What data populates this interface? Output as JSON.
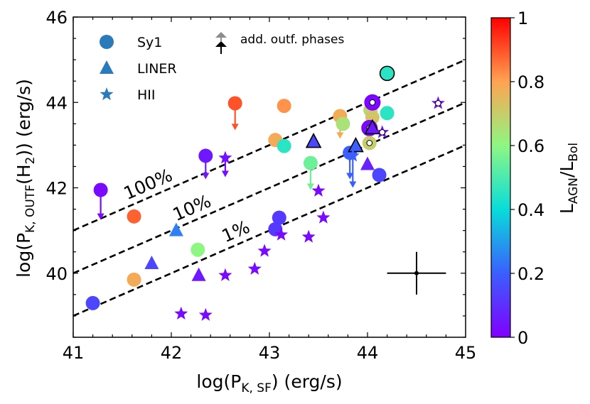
{
  "chart_data": {
    "type": "scatter",
    "xlabel": "log(P",
    "xlabel_sub": "K, SF",
    "xlabel_tail": ") (erg/s)",
    "ylabel": "log(P",
    "ylabel_sub": "K, OUTF",
    "ylabel_mid": "(H",
    "ylabel_sub2": "2",
    "ylabel_tail": ")) (erg/s)",
    "xlim": [
      41,
      45
    ],
    "ylim": [
      38.5,
      46
    ],
    "xticks": [
      "41",
      "42",
      "43",
      "44",
      "45"
    ],
    "yticks": [
      "40",
      "42",
      "44",
      "46"
    ],
    "colorbar": {
      "label": "L",
      "label_sub": "AGN",
      "label_mid": "/L",
      "label_sub2": "Bol",
      "range": [
        0,
        1
      ],
      "ticks": [
        "0",
        "0.2",
        "0.4",
        "0.6",
        "0.8",
        "1"
      ]
    },
    "legend": {
      "position": "top-left",
      "entries": [
        {
          "label": "Sy1",
          "marker": "circle"
        },
        {
          "label": "LINER",
          "marker": "triangle"
        },
        {
          "label": "HII",
          "marker": "star"
        }
      ],
      "arrow_entry": "add. outf. phases"
    },
    "reference_lines": [
      {
        "label": "100%",
        "offset": 0
      },
      {
        "label": "10%",
        "offset": -1
      },
      {
        "label": "1%",
        "offset": -2
      }
    ],
    "error_bar": {
      "x": 44.5,
      "y": 40.0,
      "xerr": 0.3,
      "yerr": 0.5
    },
    "points": [
      {
        "t": "c",
        "x": 41.2,
        "y": 39.3,
        "c": 0.15
      },
      {
        "t": "c",
        "x": 41.28,
        "y": 41.95,
        "c": 0.02,
        "arrow": 41.25
      },
      {
        "t": "c",
        "x": 41.62,
        "y": 41.33,
        "c": 0.88
      },
      {
        "t": "c",
        "x": 41.62,
        "y": 39.85,
        "c": 0.78
      },
      {
        "t": "c",
        "x": 42.27,
        "y": 40.55,
        "c": 0.6
      },
      {
        "t": "c",
        "x": 42.35,
        "y": 42.75,
        "c": 0.05,
        "arrow": 42.2
      },
      {
        "t": "c",
        "x": 42.65,
        "y": 43.98,
        "c": 0.9,
        "arrow": 43.35
      },
      {
        "t": "c",
        "x": 43.06,
        "y": 43.12,
        "c": 0.78
      },
      {
        "t": "c",
        "x": 43.06,
        "y": 41.03,
        "c": 0.12
      },
      {
        "t": "c",
        "x": 43.1,
        "y": 41.3,
        "c": 0.12
      },
      {
        "t": "c",
        "x": 43.15,
        "y": 42.98,
        "c": 0.45
      },
      {
        "t": "c",
        "x": 43.15,
        "y": 43.92,
        "c": 0.82
      },
      {
        "t": "c",
        "x": 43.42,
        "y": 42.58,
        "c": 0.55,
        "arrow": 41.95
      },
      {
        "t": "c",
        "x": 43.72,
        "y": 43.68,
        "c": 0.78,
        "arrow": 43.15
      },
      {
        "t": "c",
        "x": 43.75,
        "y": 43.5,
        "c": 0.65
      },
      {
        "t": "c",
        "x": 43.82,
        "y": 42.82,
        "c": 0.2,
        "arrow": 42.2
      },
      {
        "t": "c",
        "x": 44.03,
        "y": 43.82,
        "c": 0.68
      },
      {
        "t": "c",
        "x": 44.05,
        "y": 43.65,
        "c": 0.72
      },
      {
        "t": "c",
        "x": 44.02,
        "y": 43.4,
        "c": 0.02,
        "edge": "purple",
        "inner": true
      },
      {
        "t": "c",
        "x": 44.05,
        "y": 44.0,
        "c": 0.02,
        "edge": "purple",
        "inner": true
      },
      {
        "t": "c",
        "x": 44.12,
        "y": 42.3,
        "c": 0.15
      },
      {
        "t": "c",
        "x": 44.2,
        "y": 43.75,
        "c": 0.45
      },
      {
        "t": "c",
        "x": 44.2,
        "y": 44.68,
        "c": 0.45,
        "edge": "black"
      },
      {
        "t": "c",
        "x": 44.02,
        "y": 43.05,
        "c": 0.7,
        "inner": true
      },
      {
        "t": "t",
        "x": 41.8,
        "y": 40.23,
        "c": 0.15
      },
      {
        "t": "t",
        "x": 42.05,
        "y": 41.0,
        "c": 0.25
      },
      {
        "t": "t",
        "x": 42.28,
        "y": 39.95,
        "c": 0.05
      },
      {
        "t": "t",
        "x": 43.45,
        "y": 43.08,
        "c": 0.15,
        "edge": "black"
      },
      {
        "t": "t",
        "x": 43.88,
        "y": 42.98,
        "c": 0.2,
        "edge": "black"
      },
      {
        "t": "t",
        "x": 44.05,
        "y": 43.4,
        "c": 0.05,
        "edge": "black"
      },
      {
        "t": "t",
        "x": 44.0,
        "y": 42.55,
        "c": 0.07
      },
      {
        "t": "s",
        "x": 42.55,
        "y": 42.7,
        "c": 0.03,
        "arrow": 42.25
      },
      {
        "t": "s",
        "x": 42.1,
        "y": 39.05,
        "c": 0.02
      },
      {
        "t": "s",
        "x": 42.35,
        "y": 39.02,
        "c": 0.02
      },
      {
        "t": "s",
        "x": 42.55,
        "y": 39.95,
        "c": 0.02
      },
      {
        "t": "s",
        "x": 42.85,
        "y": 40.1,
        "c": 0.02
      },
      {
        "t": "s",
        "x": 42.95,
        "y": 40.52,
        "c": 0.02
      },
      {
        "t": "s",
        "x": 43.12,
        "y": 40.9,
        "c": 0.02
      },
      {
        "t": "s",
        "x": 43.4,
        "y": 40.85,
        "c": 0.02
      },
      {
        "t": "s",
        "x": 43.5,
        "y": 41.93,
        "c": 0.02
      },
      {
        "t": "s",
        "x": 43.55,
        "y": 41.3,
        "c": 0.02
      },
      {
        "t": "s",
        "x": 43.85,
        "y": 42.75,
        "c": 0.2,
        "arrow": 42.0
      },
      {
        "t": "s",
        "x": 44.15,
        "y": 43.3,
        "c": 0.02,
        "inner": true
      },
      {
        "t": "s",
        "x": 44.72,
        "y": 43.98,
        "c": 0.02,
        "inner": true
      }
    ]
  }
}
